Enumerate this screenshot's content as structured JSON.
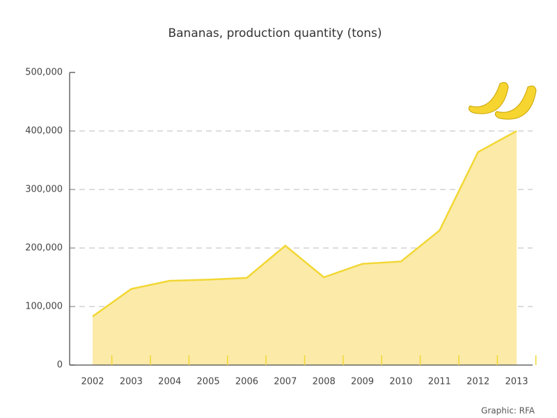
{
  "chart_data": {
    "type": "area",
    "title": "Bananas, production quantity (tons)",
    "source": "Graphic: RFA",
    "categories": [
      "2002",
      "2003",
      "2004",
      "2005",
      "2006",
      "2007",
      "2008",
      "2009",
      "2010",
      "2011",
      "2012",
      "2013"
    ],
    "values": [
      83000,
      130000,
      144000,
      146000,
      149000,
      204000,
      150000,
      173000,
      177000,
      230000,
      364000,
      400000
    ],
    "color": "#f2d733",
    "fill": "#fbeaa8",
    "ylim": [
      0,
      500000
    ],
    "yticks": [
      0,
      {
        "value": 100000,
        "label": "100,000"
      },
      {
        "value": 200000,
        "label": "200,000"
      },
      {
        "value": 300000,
        "label": "300,000"
      },
      {
        "value": 400000,
        "label": "400,000"
      },
      {
        "value": 500000,
        "label": "500,000"
      }
    ],
    "grid": true
  }
}
